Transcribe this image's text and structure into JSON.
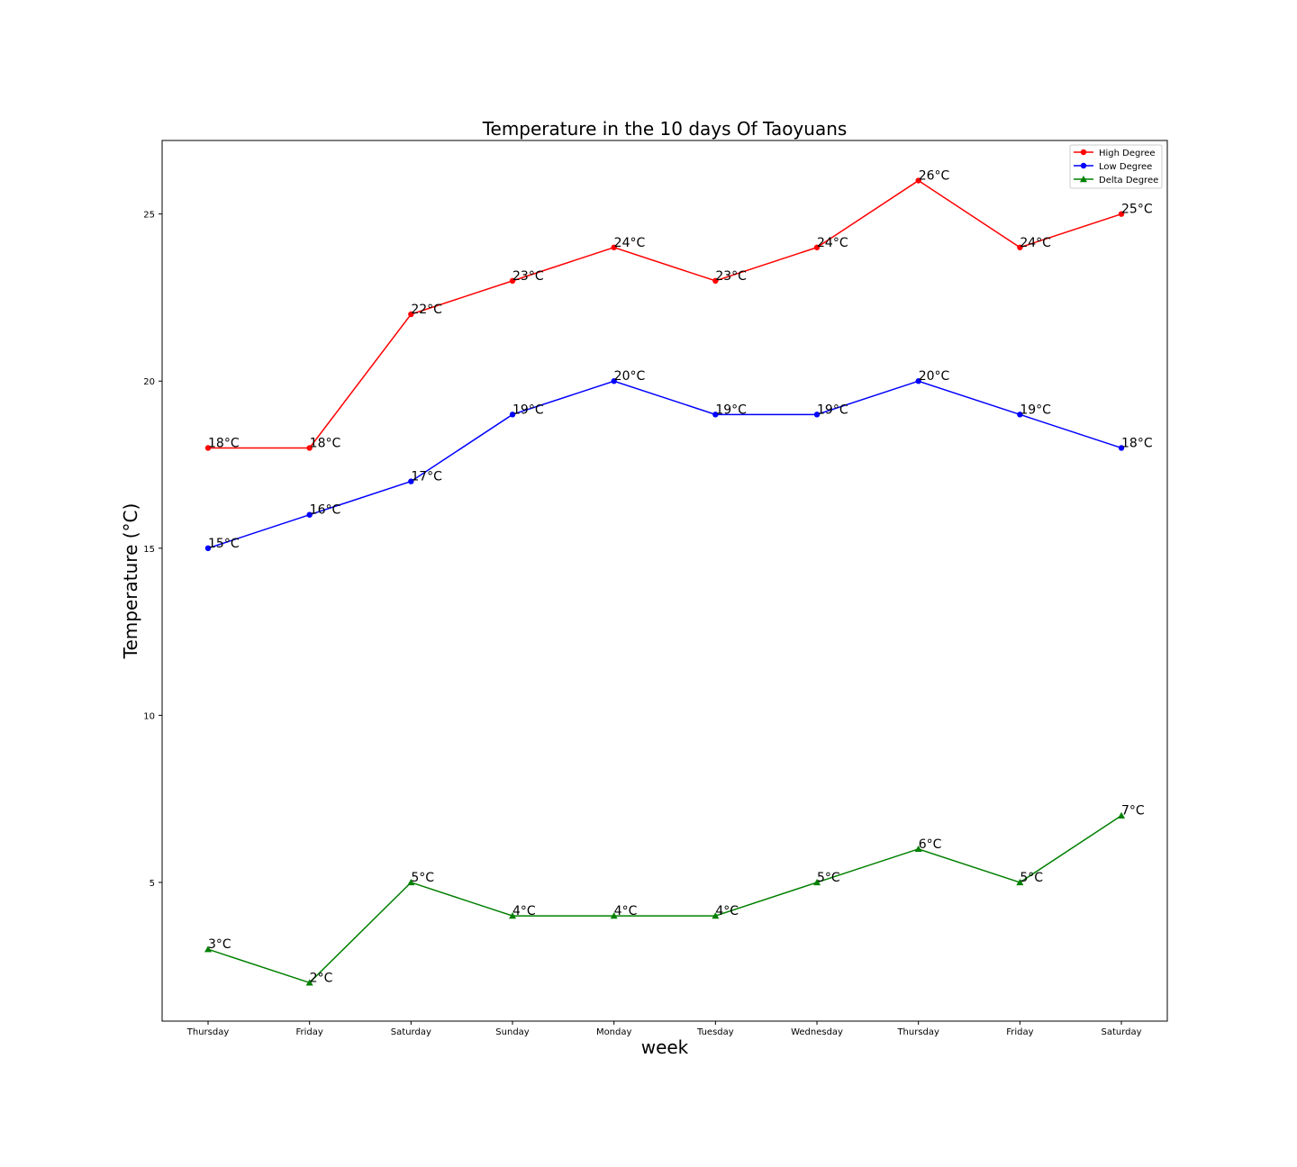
{
  "chart_data": {
    "type": "line",
    "title": "Temperature in the 10 days Of Taoyuans",
    "xlabel": "week",
    "ylabel": "Temperature (°C)",
    "categories": [
      "Thursday",
      "Friday",
      "Saturday",
      "Sunday",
      "Monday",
      "Tuesday",
      "Wednesday",
      "Thursday",
      "Friday",
      "Saturday"
    ],
    "yticks": [
      5,
      10,
      15,
      20,
      25
    ],
    "ylim": [
      0.85,
      27.2
    ],
    "grid": false,
    "legend_position": "top-right",
    "point_label_suffix": "°C",
    "series": [
      {
        "name": "High Degree",
        "color": "#ff0000",
        "marker": "circle",
        "values": [
          18,
          18,
          22,
          23,
          24,
          23,
          24,
          26,
          24,
          25
        ]
      },
      {
        "name": "Low Degree",
        "color": "#0000ff",
        "marker": "circle",
        "values": [
          15,
          16,
          17,
          19,
          20,
          19,
          19,
          20,
          19,
          18
        ]
      },
      {
        "name": "Delta Degree",
        "color": "#008000",
        "marker": "triangle",
        "values": [
          3,
          2,
          5,
          4,
          4,
          4,
          5,
          6,
          5,
          7
        ]
      }
    ]
  }
}
